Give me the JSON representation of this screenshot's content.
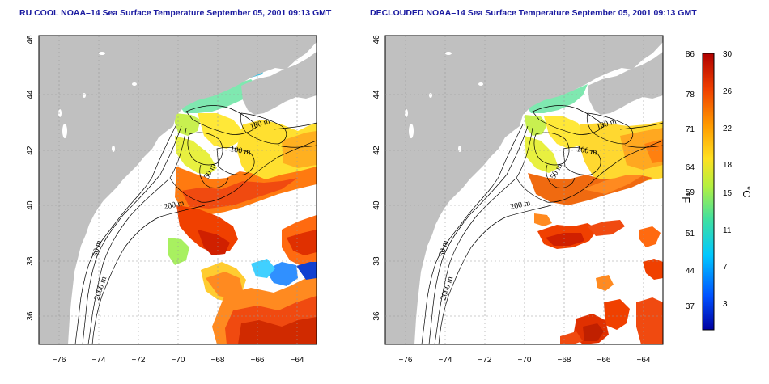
{
  "panels": [
    {
      "title": "RU COOL NOAA–14 Sea Surface Temperature September 05, 2001 09:13 GMT",
      "x_ticks": [
        "−76",
        "−74",
        "−72",
        "−70",
        "−68",
        "−66",
        "−64"
      ],
      "y_ticks": [
        "36",
        "38",
        "40",
        "42",
        "44",
        "46"
      ],
      "contour_labels": [
        "100 m",
        "100 m",
        "50 m",
        "200 m",
        "50 m",
        "2000 m"
      ]
    },
    {
      "title": "DECLOUDED NOAA–14 Sea Surface Temperature September 05, 2001 09:13 GMT",
      "x_ticks": [
        "−76",
        "−74",
        "−72",
        "−70",
        "−68",
        "−66",
        "−64"
      ],
      "y_ticks": [
        "36",
        "38",
        "40",
        "42",
        "44",
        "46"
      ],
      "contour_labels": [
        "100 m",
        "100 m",
        "50 m",
        "200 m",
        "50 m",
        "2000 m"
      ]
    }
  ],
  "colorbar": {
    "fahrenheit_label": "°F",
    "celsius_label": "°C",
    "fahrenheit_ticks": [
      "86",
      "78",
      "71",
      "64",
      "59",
      "51",
      "44",
      "37"
    ],
    "celsius_ticks": [
      "30",
      "26",
      "22",
      "18",
      "15",
      "11",
      "7",
      "3"
    ],
    "colors": [
      "#0000a0",
      "#0050ff",
      "#00c8ff",
      "#40e0a0",
      "#b4f040",
      "#ffe020",
      "#ff9a00",
      "#f04000",
      "#b00000"
    ]
  },
  "colors": {
    "land": "#c0c0c0",
    "ocean": "#ffffff",
    "contour": "#000000",
    "title": "#1a1aa0"
  }
}
